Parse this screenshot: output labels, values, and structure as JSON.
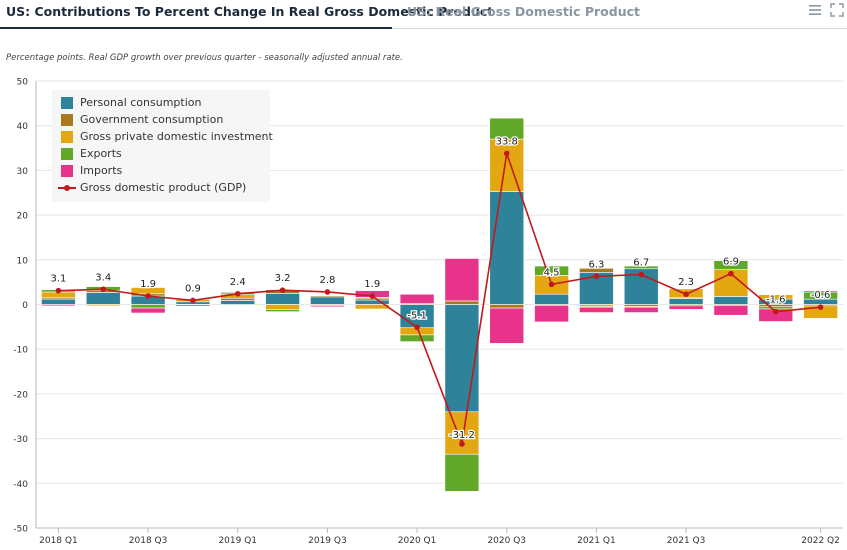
{
  "tabs": [
    {
      "label": "US: Contributions To Percent Change In Real Gross Domestic Product"
    },
    {
      "label": "US: Real Gross Domestic Product"
    }
  ],
  "icons": {
    "menu": "menu-icon",
    "expand": "expand-icon"
  },
  "subtitle": "Percentage points. Real GDP growth over previous quarter - seasonally adjusted annual rate.",
  "chart_data": {
    "type": "bar",
    "stacked": true,
    "categories": [
      "2018 Q1",
      "2018 Q2",
      "2018 Q3",
      "2018 Q4",
      "2019 Q1",
      "2019 Q2",
      "2019 Q3",
      "2019 Q4",
      "2020 Q1",
      "2020 Q2",
      "2020 Q3",
      "2020 Q4",
      "2021 Q1",
      "2021 Q2",
      "2021 Q3",
      "2021 Q4",
      "2022 Q1",
      "2022 Q2"
    ],
    "x_tick_labels": [
      "2018 Q1",
      "2018 Q3",
      "2019 Q1",
      "2019 Q3",
      "2020 Q1",
      "2020 Q3",
      "2021 Q1",
      "2021 Q3",
      "2022 Q2"
    ],
    "ylim": [
      -50,
      50
    ],
    "y_ticks": [
      -50,
      -40,
      -30,
      -20,
      -10,
      0,
      10,
      20,
      30,
      40,
      50
    ],
    "grid": true,
    "legend_position": "top-left",
    "series": [
      {
        "name": "Personal consumption",
        "color": "#2e8299",
        "values": [
          1.2,
          2.7,
          1.9,
          0.6,
          0.9,
          2.5,
          1.7,
          1.0,
          -5.2,
          -24.0,
          25.3,
          2.3,
          7.2,
          8.0,
          1.3,
          1.8,
          1.2,
          1.2
        ]
      },
      {
        "name": "Government consumption",
        "color": "#a77a1f",
        "values": [
          0.3,
          0.4,
          0.5,
          -0.1,
          0.5,
          0.8,
          0.3,
          0.4,
          0.2,
          0.8,
          -0.8,
          -0.2,
          0.9,
          -0.4,
          0.2,
          -0.2,
          -0.5,
          -0.3
        ]
      },
      {
        "name": "Gross private domestic investment",
        "color": "#e3a712",
        "values": [
          1.3,
          -0.3,
          1.4,
          0.5,
          0.8,
          -1.1,
          -0.2,
          -1.0,
          -1.6,
          -9.5,
          11.7,
          4.2,
          -0.4,
          -0.2,
          2.0,
          6.0,
          1.0,
          -2.8
        ]
      },
      {
        "name": "Exports",
        "color": "#62a828",
        "values": [
          0.5,
          0.9,
          -0.8,
          0.2,
          0.4,
          -0.5,
          0.1,
          0.2,
          -1.5,
          -8.3,
          4.7,
          2.1,
          -0.2,
          0.6,
          -0.3,
          2.0,
          -0.5,
          1.6
        ]
      },
      {
        "name": "Imports",
        "color": "#e8338a",
        "values": [
          -0.3,
          -0.1,
          -1.1,
          -0.3,
          0.2,
          0.0,
          -0.3,
          1.5,
          2.1,
          9.5,
          -7.9,
          -3.7,
          -1.2,
          -1.2,
          -0.8,
          -2.2,
          -2.8,
          0.3
        ]
      }
    ],
    "line": {
      "name": "Gross domestic product (GDP)",
      "color": "#c21a1a",
      "values": [
        3.1,
        3.4,
        1.9,
        0.9,
        2.4,
        3.2,
        2.8,
        1.9,
        -5.1,
        -31.2,
        33.8,
        4.5,
        6.3,
        6.7,
        2.3,
        6.9,
        -1.6,
        -0.6
      ],
      "labels": [
        "3.1",
        "3.4",
        "1.9",
        "0.9",
        "2.4",
        "3.2",
        "2.8",
        "1.9",
        "-5.1",
        "-31.2",
        "33.8",
        "4.5",
        "6.3",
        "6.7",
        "2.3",
        "6.9",
        "-1.6",
        "-0.6"
      ]
    }
  }
}
